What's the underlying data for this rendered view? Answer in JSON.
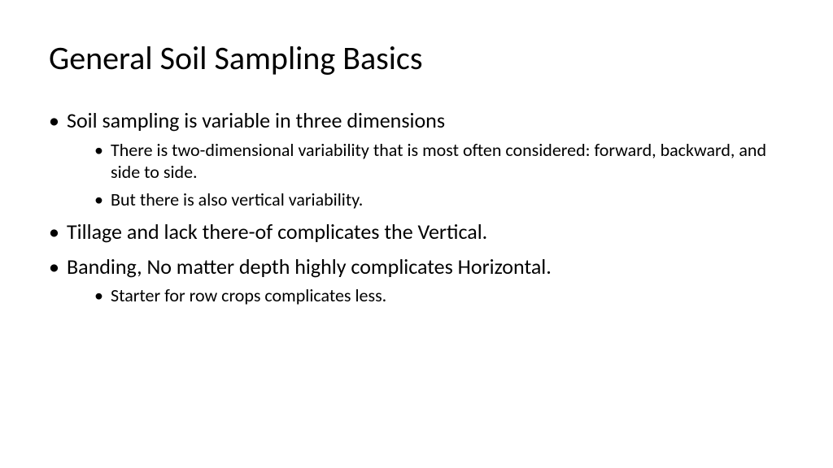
{
  "slide": {
    "title": "General Soil Sampling Basics",
    "bullets": [
      {
        "text": "Soil sampling is variable in three dimensions",
        "sub": [
          "There is two-dimensional variability that is most often considered: forward, backward, and side to side.",
          "But there is also vertical variability."
        ]
      },
      {
        "text": "Tillage and lack there-of complicates the Vertical.",
        "sub": []
      },
      {
        "text": "Banding, No matter depth highly complicates Horizontal.",
        "sub": [
          "Starter for row crops complicates less."
        ]
      }
    ]
  },
  "style": {
    "background_color": "#ffffff",
    "text_color": "#000000",
    "title_fontsize": 40,
    "level1_fontsize": 26,
    "level2_fontsize": 22,
    "font_family": "Calibri"
  }
}
